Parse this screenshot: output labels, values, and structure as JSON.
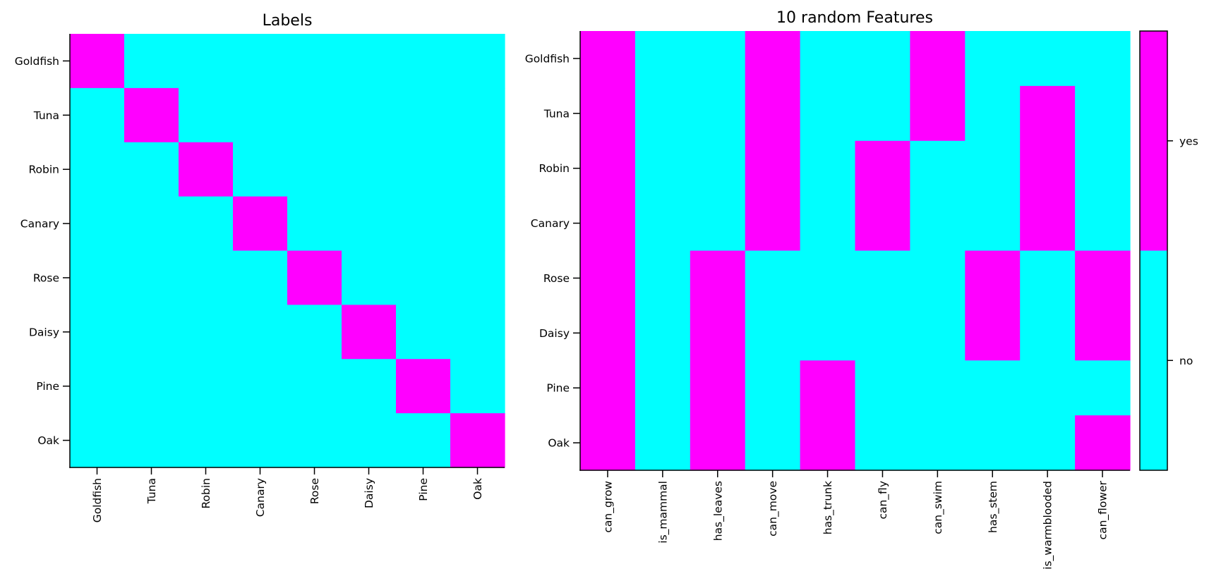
{
  "chart_data": [
    {
      "type": "heatmap",
      "title": "Labels",
      "rows": [
        "Goldfish",
        "Tuna",
        "Robin",
        "Canary",
        "Rose",
        "Daisy",
        "Pine",
        "Oak"
      ],
      "columns": [
        "Goldfish",
        "Tuna",
        "Robin",
        "Canary",
        "Rose",
        "Daisy",
        "Pine",
        "Oak"
      ],
      "values": [
        [
          1,
          0,
          0,
          0,
          0,
          0,
          0,
          0
        ],
        [
          0,
          1,
          0,
          0,
          0,
          0,
          0,
          0
        ],
        [
          0,
          0,
          1,
          0,
          0,
          0,
          0,
          0
        ],
        [
          0,
          0,
          0,
          1,
          0,
          0,
          0,
          0
        ],
        [
          0,
          0,
          0,
          0,
          1,
          0,
          0,
          0
        ],
        [
          0,
          0,
          0,
          0,
          0,
          1,
          0,
          0
        ],
        [
          0,
          0,
          0,
          0,
          0,
          0,
          1,
          0
        ],
        [
          0,
          0,
          0,
          0,
          0,
          0,
          0,
          1
        ]
      ],
      "colors": {
        "0": "#00ffff",
        "1": "#ff00ff"
      },
      "colorbar": false
    },
    {
      "type": "heatmap",
      "title": "10 random Features",
      "rows": [
        "Goldfish",
        "Tuna",
        "Robin",
        "Canary",
        "Rose",
        "Daisy",
        "Pine",
        "Oak"
      ],
      "columns": [
        "can_grow",
        "is_mammal",
        "has_leaves",
        "can_move",
        "has_trunk",
        "can_fly",
        "can_swim",
        "has_stem",
        "is_warmblooded",
        "can_flower"
      ],
      "values": [
        [
          1,
          0,
          0,
          1,
          0,
          0,
          1,
          0,
          0,
          0
        ],
        [
          1,
          0,
          0,
          1,
          0,
          0,
          1,
          0,
          1,
          0
        ],
        [
          1,
          0,
          0,
          1,
          0,
          1,
          0,
          0,
          1,
          0
        ],
        [
          1,
          0,
          0,
          1,
          0,
          1,
          0,
          0,
          1,
          0
        ],
        [
          1,
          0,
          1,
          0,
          0,
          0,
          0,
          1,
          0,
          1
        ],
        [
          1,
          0,
          1,
          0,
          0,
          0,
          0,
          1,
          0,
          1
        ],
        [
          1,
          0,
          1,
          0,
          1,
          0,
          0,
          0,
          0,
          0
        ],
        [
          1,
          0,
          1,
          0,
          1,
          0,
          0,
          0,
          0,
          1
        ]
      ],
      "colors": {
        "0": "#00ffff",
        "1": "#ff00ff"
      },
      "colorbar": true,
      "colorbar_labels": [
        "no",
        "yes"
      ]
    }
  ]
}
